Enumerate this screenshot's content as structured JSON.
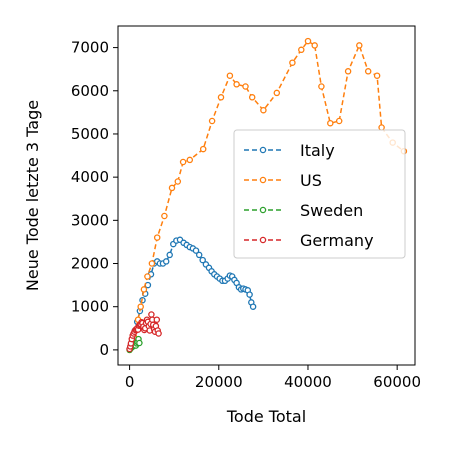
{
  "chart_data": {
    "type": "line",
    "title": "",
    "xlabel": "Tode Total",
    "ylabel": "Neue Tode letzte 3 Tage",
    "xlim": [
      -2600,
      64000
    ],
    "ylim": [
      -350,
      7500
    ],
    "xticks": [
      0,
      20000,
      40000,
      60000
    ],
    "xtick_labels": [
      "0",
      "20000",
      "40000",
      "60000"
    ],
    "yticks": [
      0,
      1000,
      2000,
      3000,
      4000,
      5000,
      6000,
      7000
    ],
    "ytick_labels": [
      "0",
      "1000",
      "2000",
      "3000",
      "4000",
      "5000",
      "6000",
      "7000"
    ],
    "grid": false,
    "legend_position": "center-right",
    "series": [
      {
        "name": "Italy",
        "color": "#1f77b4",
        "x": [
          0,
          200,
          500,
          800,
          1200,
          1700,
          2300,
          2900,
          3500,
          4100,
          4800,
          5500,
          6200,
          6800,
          7500,
          8200,
          9000,
          9800,
          10500,
          11300,
          12100,
          12800,
          13500,
          14200,
          14900,
          15600,
          16400,
          17100,
          17800,
          18400,
          19000,
          19600,
          20200,
          20800,
          21400,
          22000,
          22500,
          23000,
          23500,
          24000,
          24500,
          25000,
          25500,
          26000,
          26500,
          26900,
          27300,
          27700
        ],
        "y": [
          20,
          80,
          180,
          300,
          450,
          650,
          900,
          1150,
          1300,
          1500,
          1750,
          2000,
          2050,
          2000,
          2000,
          2050,
          2200,
          2450,
          2530,
          2550,
          2480,
          2430,
          2380,
          2350,
          2300,
          2200,
          2080,
          1980,
          1900,
          1820,
          1750,
          1700,
          1650,
          1600,
          1600,
          1650,
          1720,
          1700,
          1620,
          1550,
          1450,
          1400,
          1420,
          1400,
          1380,
          1280,
          1100,
          1000
        ]
      },
      {
        "name": "US",
        "color": "#ff7f0e",
        "x": [
          0,
          150,
          400,
          700,
          1000,
          1400,
          1900,
          2500,
          3200,
          4000,
          5000,
          6200,
          7800,
          9500,
          10800,
          12000,
          13500,
          16500,
          18500,
          20500,
          22500,
          24000,
          26000,
          27500,
          30000,
          33000,
          36500,
          38500,
          40000,
          41500,
          43000,
          45000,
          47000,
          49000,
          51500,
          53500,
          55500,
          56500,
          59000,
          61500
        ],
        "y": [
          0,
          40,
          100,
          200,
          300,
          450,
          700,
          1000,
          1400,
          1700,
          2000,
          2600,
          3100,
          3750,
          3900,
          4350,
          4400,
          4650,
          5300,
          5850,
          6350,
          6150,
          6100,
          5850,
          5550,
          5950,
          6650,
          6950,
          7150,
          7050,
          6100,
          5250,
          5300,
          6450,
          7050,
          6450,
          6350,
          5150,
          4800,
          4600
        ]
      },
      {
        "name": "Sweden",
        "color": "#2ca02c",
        "x": [
          0,
          100,
          200,
          300,
          450,
          600,
          750,
          900,
          1050,
          1200,
          1400,
          1600,
          1800,
          2000,
          2200
        ],
        "y": [
          0,
          20,
          30,
          45,
          60,
          70,
          85,
          100,
          120,
          140,
          100,
          150,
          180,
          250,
          160
        ]
      },
      {
        "name": "Germany",
        "color": "#d62728",
        "x": [
          0,
          150,
          300,
          500,
          700,
          900,
          1100,
          1300,
          1500,
          1700,
          1900,
          2100,
          2300,
          2500,
          2700,
          2900,
          3100,
          3300,
          3500,
          3700,
          3900,
          4100,
          4300,
          4500,
          4700,
          4900,
          5100,
          5300,
          5500,
          5700,
          5900,
          6100,
          6300,
          6500
        ],
        "y": [
          20,
          80,
          150,
          250,
          330,
          380,
          420,
          460,
          480,
          500,
          470,
          560,
          580,
          600,
          640,
          620,
          540,
          460,
          500,
          620,
          700,
          650,
          550,
          450,
          600,
          820,
          700,
          580,
          480,
          420,
          550,
          700,
          450,
          380
        ]
      }
    ]
  }
}
